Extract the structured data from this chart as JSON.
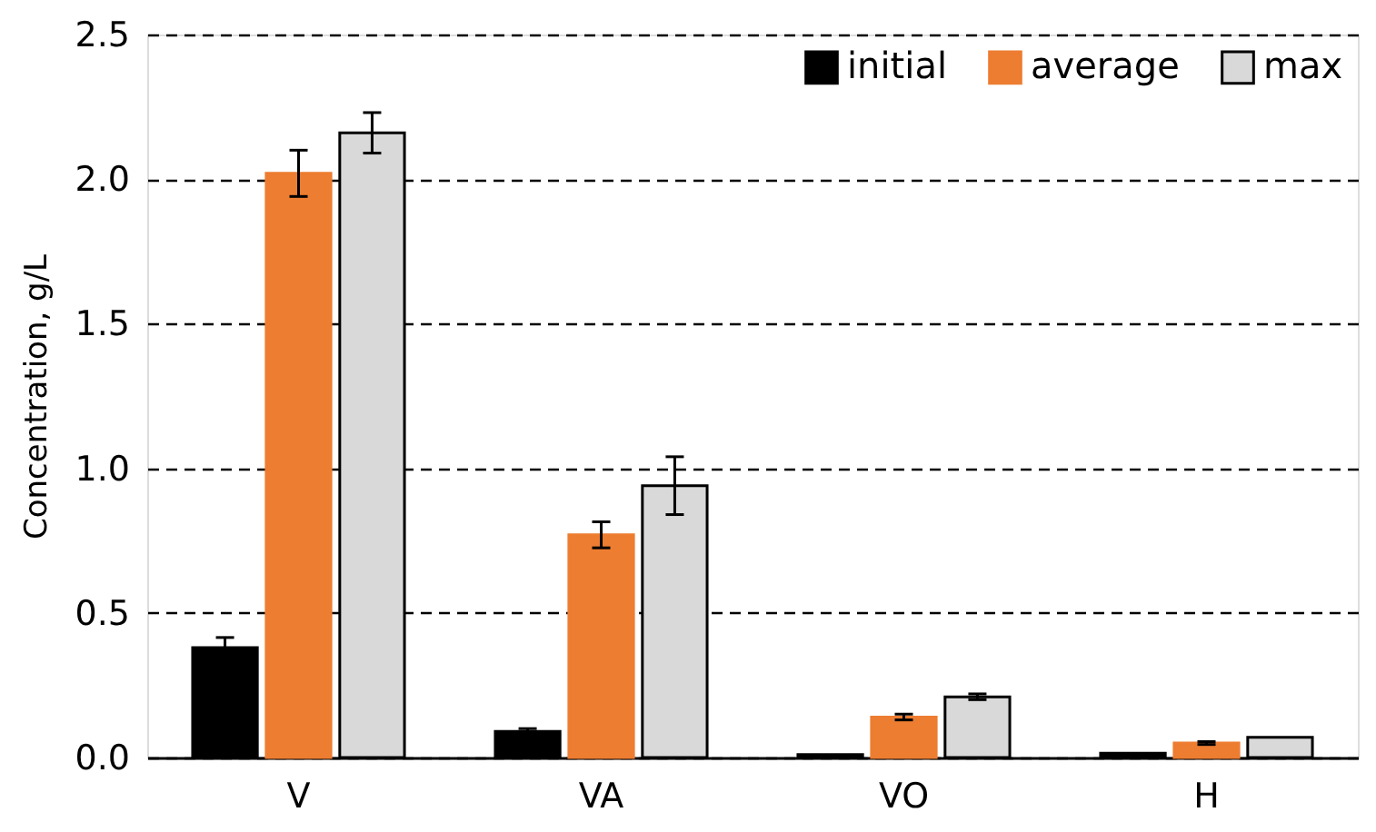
{
  "chart_data": {
    "type": "bar",
    "ylabel": "Concentration, g/L",
    "categories": [
      "V",
      "VA",
      "VO",
      "H"
    ],
    "series": [
      {
        "name": "initial",
        "color": "#000000",
        "values": [
          0.38,
          0.09,
          0.01,
          0.015
        ],
        "errors": [
          0.035,
          0.01,
          null,
          null
        ]
      },
      {
        "name": "average",
        "color": "#ed7d31",
        "values": [
          2.02,
          0.77,
          0.14,
          0.05
        ],
        "errors": [
          0.08,
          0.045,
          0.01,
          0.005
        ]
      },
      {
        "name": "max",
        "color": "#d9d9d9",
        "values": [
          2.16,
          0.94,
          0.21,
          0.07
        ],
        "errors": [
          0.07,
          0.1,
          0.01,
          null
        ]
      }
    ],
    "ylim": [
      0,
      2.5
    ],
    "yticks": [
      {
        "value": 0,
        "label": "0.0"
      },
      {
        "value": 0.5,
        "label": "0.5"
      },
      {
        "value": 1,
        "label": "1.0"
      },
      {
        "value": 1.5,
        "label": "1.5"
      },
      {
        "value": 2,
        "label": "2.0"
      },
      {
        "value": 2.5,
        "label": "2.5"
      }
    ],
    "grid": "y",
    "legend": "top right"
  }
}
